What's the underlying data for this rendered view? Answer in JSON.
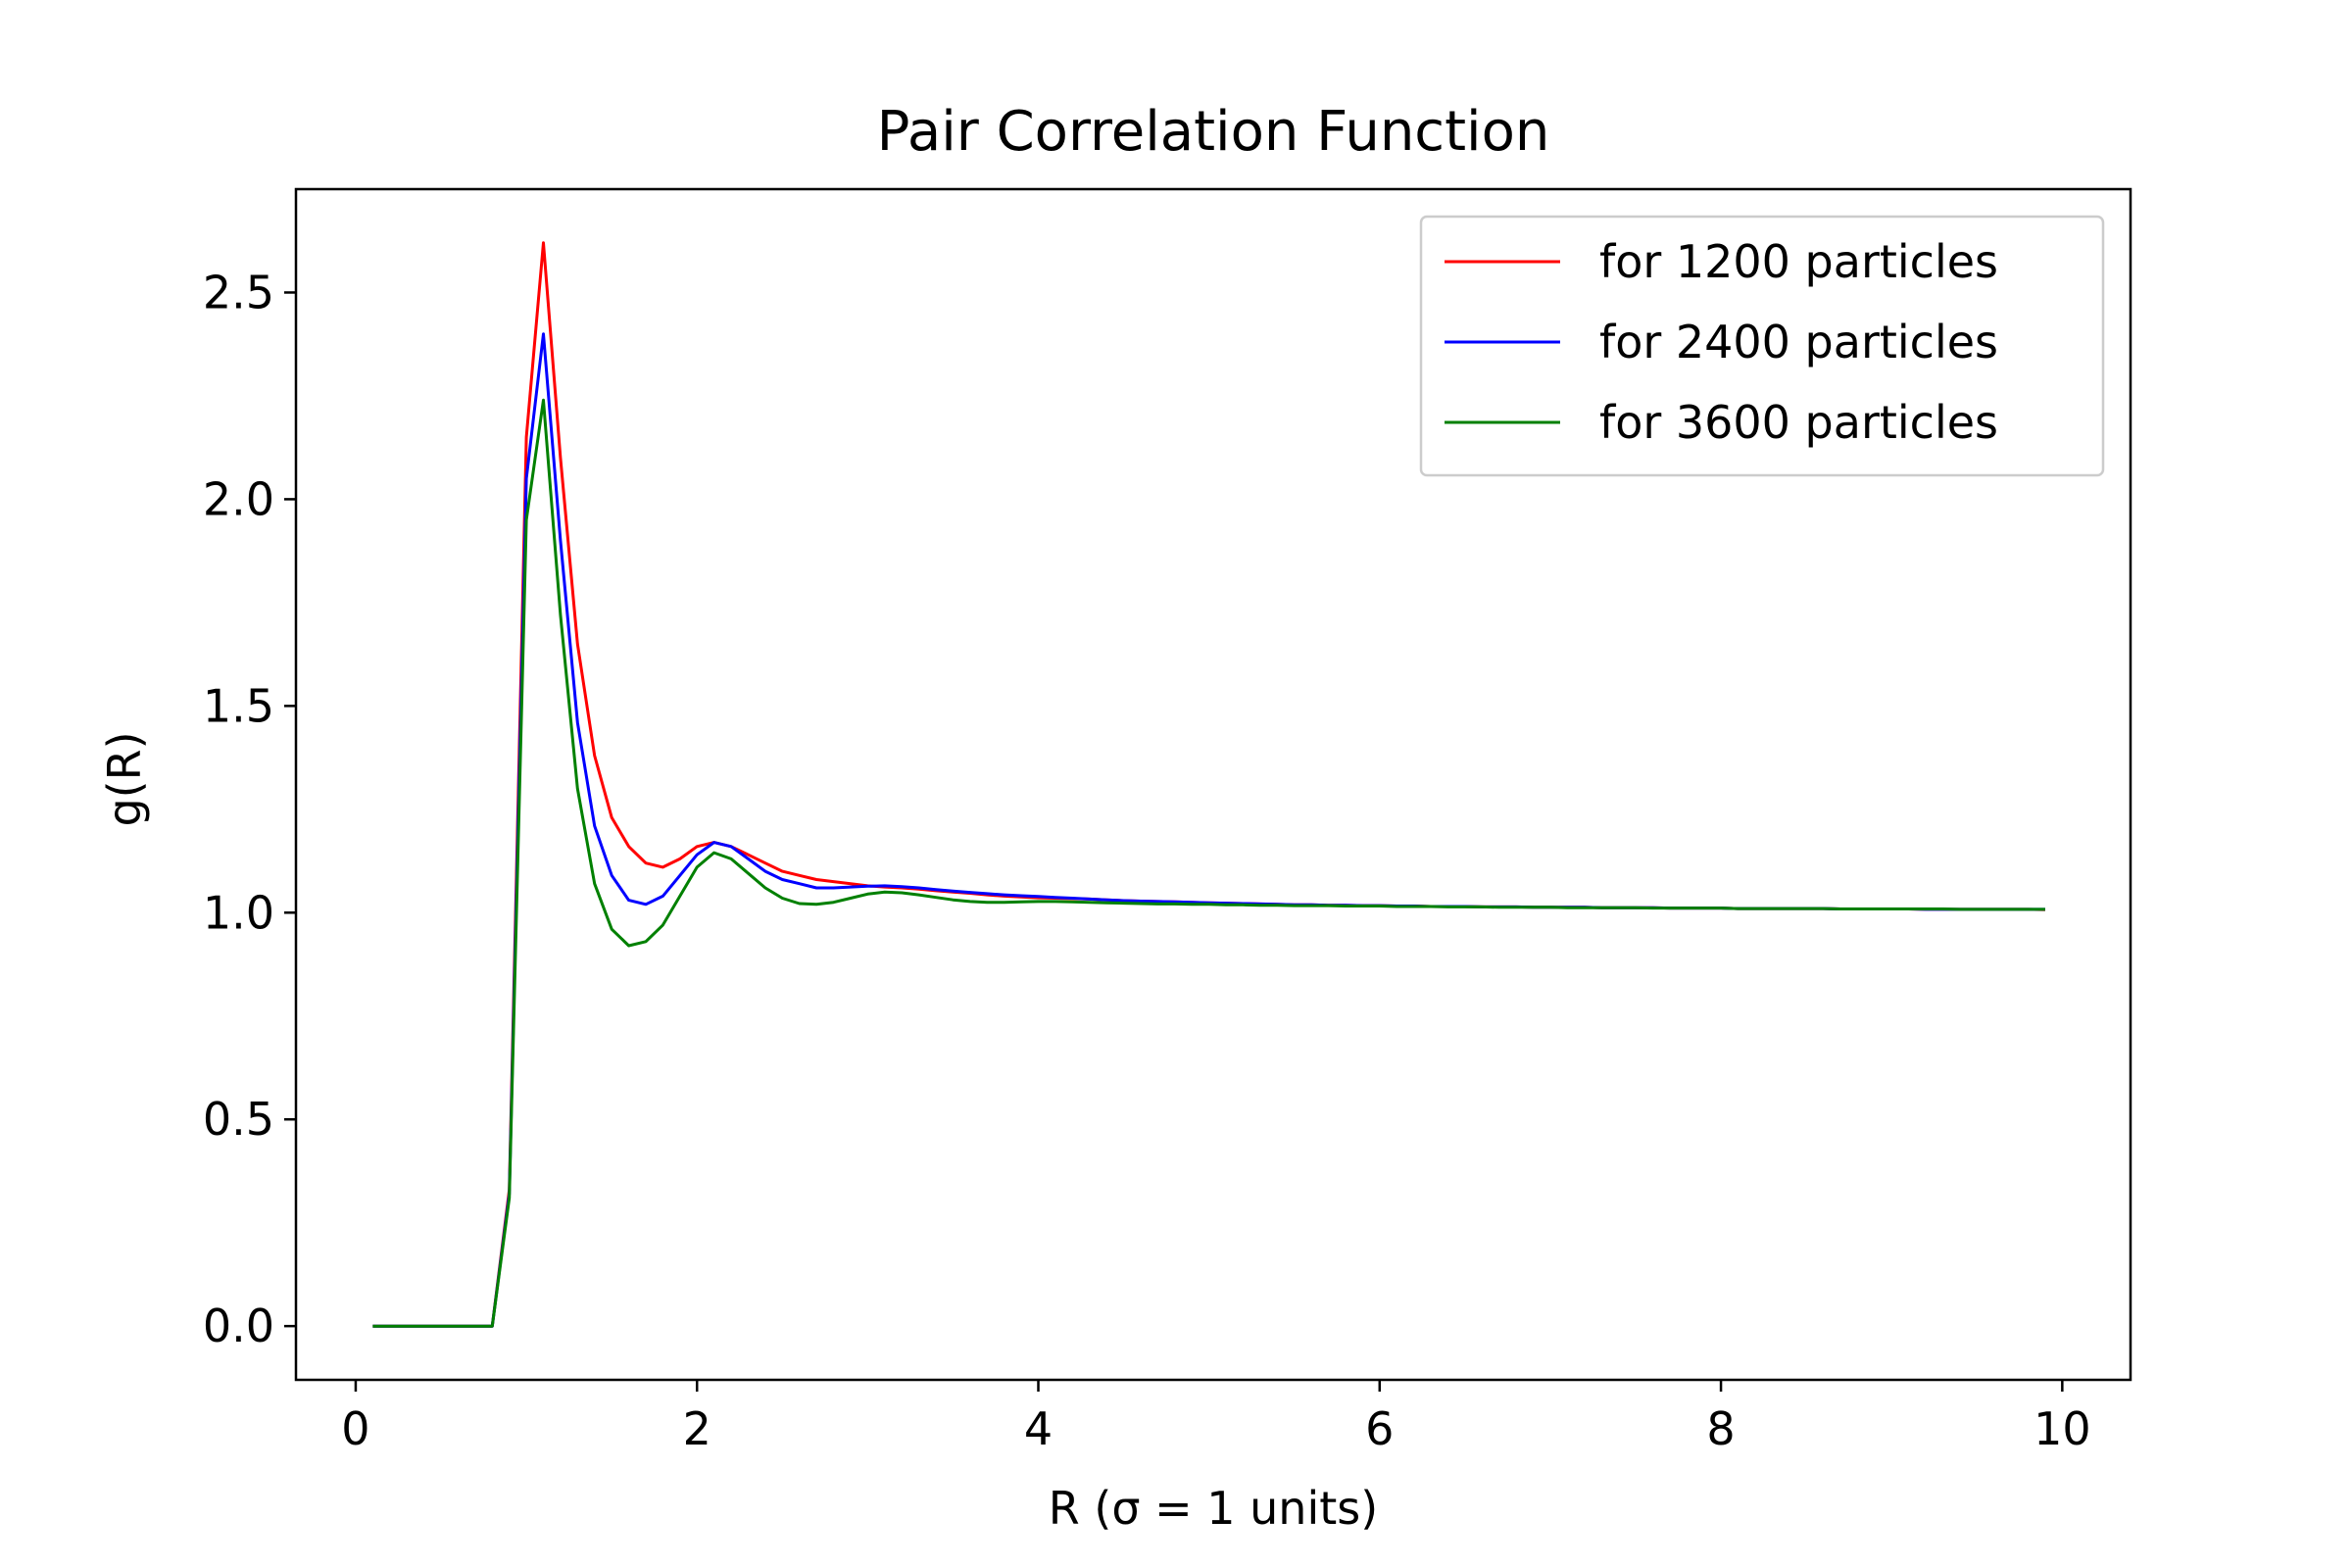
{
  "chart_data": {
    "type": "line",
    "title": "Pair Correlation Function",
    "xlabel": "R (σ = 1 units)",
    "ylabel": "g(R)",
    "xlim": [
      -0.35,
      10.4
    ],
    "ylim": [
      -0.13,
      2.75
    ],
    "xticks": [
      0,
      2,
      4,
      6,
      8,
      10
    ],
    "xtick_labels": [
      "0",
      "2",
      "4",
      "6",
      "8",
      "10"
    ],
    "yticks": [
      0.0,
      0.5,
      1.0,
      1.5,
      2.0,
      2.5
    ],
    "ytick_labels": [
      "0.0",
      "0.5",
      "1.0",
      "1.5",
      "2.0",
      "2.5"
    ],
    "grid": false,
    "legend_position": "top-right",
    "x": [
      0.1,
      0.2,
      0.3,
      0.4,
      0.5,
      0.6,
      0.7,
      0.8,
      0.9,
      1.0,
      1.1,
      1.2,
      1.3,
      1.4,
      1.5,
      1.6,
      1.7,
      1.8,
      1.9,
      2.0,
      2.1,
      2.2,
      2.3,
      2.4,
      2.5,
      2.6,
      2.7,
      2.8,
      2.9,
      3.0,
      3.1,
      3.2,
      3.3,
      3.4,
      3.5,
      3.6,
      3.7,
      3.8,
      3.9,
      4.0,
      4.1,
      4.2,
      4.3,
      4.4,
      4.5,
      4.6,
      4.7,
      4.8,
      4.9,
      5.0,
      5.1,
      5.2,
      5.3,
      5.4,
      5.5,
      5.6,
      5.7,
      5.8,
      5.9,
      6.0,
      6.1,
      6.2,
      6.3,
      6.4,
      6.5,
      6.6,
      6.7,
      6.8,
      6.9,
      7.0,
      7.1,
      7.2,
      7.3,
      7.4,
      7.5,
      7.6,
      7.7,
      7.8,
      7.9,
      8.0,
      8.1,
      8.2,
      8.3,
      8.4,
      8.5,
      8.6,
      8.7,
      8.8,
      8.9,
      9.0,
      9.1,
      9.2,
      9.3,
      9.4,
      9.5,
      9.6,
      9.7,
      9.8,
      9.9
    ],
    "series": [
      {
        "name": "for 1200 particles",
        "color": "#ff0000",
        "values": [
          0,
          0,
          0,
          0,
          0,
          0,
          0,
          0,
          0.33,
          2.15,
          2.62,
          2.1,
          1.65,
          1.38,
          1.23,
          1.16,
          1.12,
          1.11,
          1.13,
          1.16,
          1.17,
          1.16,
          1.14,
          1.12,
          1.1,
          1.09,
          1.08,
          1.075,
          1.07,
          1.065,
          1.062,
          1.06,
          1.057,
          1.053,
          1.05,
          1.047,
          1.043,
          1.04,
          1.038,
          1.036,
          1.035,
          1.034,
          1.033,
          1.031,
          1.029,
          1.028,
          1.027,
          1.026,
          1.025,
          1.024,
          1.023,
          1.022,
          1.021,
          1.02,
          1.019,
          1.019,
          1.018,
          1.018,
          1.017,
          1.017,
          1.016,
          1.016,
          1.015,
          1.015,
          1.015,
          1.014,
          1.014,
          1.014,
          1.013,
          1.013,
          1.013,
          1.013,
          1.012,
          1.012,
          1.012,
          1.012,
          1.011,
          1.011,
          1.011,
          1.011,
          1.01,
          1.01,
          1.01,
          1.01,
          1.01,
          1.01,
          1.009,
          1.009,
          1.009,
          1.009,
          1.009,
          1.008,
          1.008,
          1.008,
          1.008,
          1.008,
          1.008,
          1.008,
          1.007
        ]
      },
      {
        "name": "for 2400 particles",
        "color": "#0000ff",
        "values": [
          0,
          0,
          0,
          0,
          0,
          0,
          0,
          0,
          0.32,
          2.05,
          2.4,
          1.9,
          1.46,
          1.21,
          1.09,
          1.03,
          1.02,
          1.04,
          1.09,
          1.14,
          1.17,
          1.16,
          1.13,
          1.1,
          1.08,
          1.07,
          1.06,
          1.06,
          1.062,
          1.064,
          1.065,
          1.063,
          1.06,
          1.056,
          1.052,
          1.049,
          1.046,
          1.043,
          1.041,
          1.039,
          1.037,
          1.035,
          1.033,
          1.031,
          1.029,
          1.028,
          1.027,
          1.026,
          1.025,
          1.024,
          1.023,
          1.022,
          1.021,
          1.02,
          1.019,
          1.019,
          1.018,
          1.018,
          1.017,
          1.017,
          1.016,
          1.016,
          1.015,
          1.015,
          1.015,
          1.014,
          1.014,
          1.014,
          1.013,
          1.013,
          1.013,
          1.013,
          1.012,
          1.012,
          1.012,
          1.012,
          1.011,
          1.011,
          1.011,
          1.011,
          1.01,
          1.01,
          1.01,
          1.01,
          1.01,
          1.01,
          1.009,
          1.009,
          1.009,
          1.009,
          1.009,
          1.008,
          1.008,
          1.008,
          1.008,
          1.008,
          1.008,
          1.008,
          1.008
        ]
      },
      {
        "name": "for 3600 particles",
        "color": "#008000",
        "values": [
          0,
          0,
          0,
          0,
          0,
          0,
          0,
          0,
          0.31,
          1.95,
          2.24,
          1.72,
          1.3,
          1.07,
          0.96,
          0.92,
          0.93,
          0.97,
          1.04,
          1.11,
          1.145,
          1.13,
          1.095,
          1.06,
          1.035,
          1.022,
          1.02,
          1.025,
          1.035,
          1.045,
          1.05,
          1.048,
          1.043,
          1.037,
          1.031,
          1.027,
          1.025,
          1.025,
          1.026,
          1.027,
          1.027,
          1.026,
          1.025,
          1.024,
          1.023,
          1.022,
          1.021,
          1.021,
          1.02,
          1.02,
          1.019,
          1.019,
          1.018,
          1.018,
          1.017,
          1.017,
          1.017,
          1.016,
          1.016,
          1.016,
          1.015,
          1.015,
          1.015,
          1.014,
          1.014,
          1.014,
          1.013,
          1.013,
          1.013,
          1.013,
          1.012,
          1.012,
          1.012,
          1.012,
          1.012,
          1.011,
          1.011,
          1.011,
          1.011,
          1.011,
          1.01,
          1.01,
          1.01,
          1.01,
          1.01,
          1.01,
          1.009,
          1.009,
          1.009,
          1.009,
          1.009,
          1.009,
          1.009,
          1.008,
          1.008,
          1.008,
          1.008,
          1.008,
          1.008
        ]
      }
    ]
  }
}
